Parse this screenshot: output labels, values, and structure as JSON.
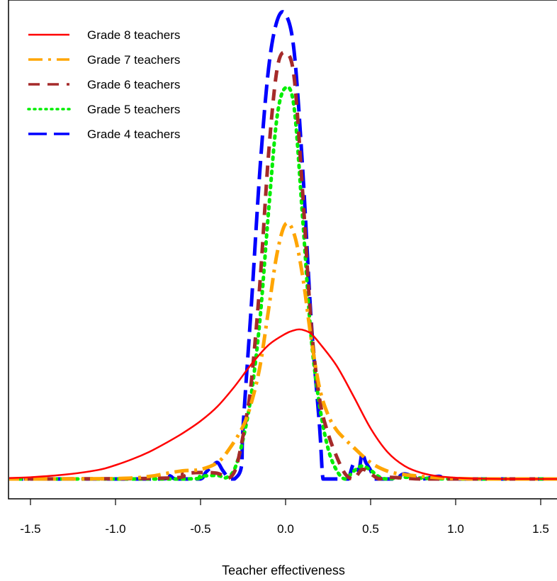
{
  "chart_data": {
    "type": "line",
    "title": "",
    "xlabel": "Teacher effectiveness",
    "ylabel": "",
    "xlim": [
      -1.65,
      1.6
    ],
    "ylim": [
      -0.06,
      1.0
    ],
    "x_ticks": [
      -1.5,
      -1.0,
      -0.5,
      0.0,
      0.5,
      1.0,
      1.5
    ],
    "x_tick_labels": [
      "-1.5",
      "-1.0",
      "-0.5",
      "0.0",
      "0.5",
      "1.0",
      "1.5"
    ],
    "y_axis_shown": false,
    "grid": false,
    "legend_position": "top-left",
    "series": [
      {
        "name": "Grade 8 teachers",
        "color": "#ff0000",
        "style": "solid",
        "x": [
          -1.65,
          -1.5,
          -1.3,
          -1.1,
          -1.0,
          -0.9,
          -0.8,
          -0.7,
          -0.6,
          -0.5,
          -0.4,
          -0.3,
          -0.2,
          -0.1,
          0.0,
          0.05,
          0.08,
          0.11,
          0.15,
          0.2,
          0.3,
          0.4,
          0.5,
          0.6,
          0.7,
          0.8,
          0.9,
          1.0,
          1.1,
          1.3,
          1.6
        ],
        "values": [
          0.002,
          0.004,
          0.01,
          0.021,
          0.032,
          0.046,
          0.063,
          0.084,
          0.107,
          0.134,
          0.168,
          0.214,
          0.266,
          0.31,
          0.336,
          0.344,
          0.346,
          0.344,
          0.336,
          0.314,
          0.262,
          0.191,
          0.117,
          0.062,
          0.03,
          0.014,
          0.006,
          0.003,
          0.001,
          0.0,
          0.0
        ]
      },
      {
        "name": "Grade 7 teachers",
        "color": "#ffa500",
        "style": "dotdash",
        "x": [
          -1.65,
          -1.0,
          -0.8,
          -0.7,
          -0.6,
          -0.5,
          -0.4,
          -0.33,
          -0.25,
          -0.2,
          -0.15,
          -0.1,
          -0.05,
          0.0,
          0.05,
          0.1,
          0.15,
          0.2,
          0.25,
          0.3,
          0.35,
          0.4,
          0.5,
          0.6,
          0.7,
          0.8,
          0.9,
          1.0,
          1.2,
          1.6
        ],
        "values": [
          0.0,
          0.001,
          0.006,
          0.013,
          0.019,
          0.022,
          0.038,
          0.07,
          0.122,
          0.178,
          0.262,
          0.392,
          0.522,
          0.59,
          0.567,
          0.47,
          0.326,
          0.21,
          0.148,
          0.113,
          0.092,
          0.073,
          0.038,
          0.018,
          0.01,
          0.006,
          0.003,
          0.001,
          0.0,
          0.0
        ]
      },
      {
        "name": "Grade 6 teachers",
        "color": "#a52a2a",
        "style": "dashed",
        "x": [
          -1.65,
          -0.7,
          -0.6,
          -0.5,
          -0.4,
          -0.34,
          -0.3,
          -0.27,
          -0.23,
          -0.2,
          -0.15,
          -0.1,
          -0.05,
          0.0,
          0.05,
          0.1,
          0.15,
          0.2,
          0.25,
          0.3,
          0.35,
          0.4,
          0.45,
          0.5,
          0.55,
          0.6,
          0.7,
          0.8,
          1.0,
          1.6
        ],
        "values": [
          0.0,
          0.002,
          0.012,
          0.015,
          0.013,
          0.002,
          0.017,
          0.06,
          0.145,
          0.23,
          0.458,
          0.752,
          0.948,
          0.986,
          0.93,
          0.665,
          0.36,
          0.185,
          0.105,
          0.052,
          0.012,
          0.0,
          0.022,
          0.012,
          0.0,
          0.004,
          0.002,
          0.0,
          0.0,
          0.0
        ]
      },
      {
        "name": "Grade 5 teachers",
        "color": "#00ee00",
        "style": "dotted",
        "x": [
          -1.65,
          -0.6,
          -0.5,
          -0.4,
          -0.35,
          -0.3,
          -0.25,
          -0.2,
          -0.15,
          -0.1,
          -0.05,
          0.0,
          0.05,
          0.1,
          0.15,
          0.2,
          0.25,
          0.3,
          0.35,
          0.4,
          0.45,
          0.5,
          0.55,
          0.6,
          0.7,
          0.8,
          1.0,
          1.6
        ],
        "values": [
          0.0,
          0.0,
          0.006,
          0.008,
          0.003,
          0.023,
          0.092,
          0.2,
          0.372,
          0.62,
          0.838,
          0.905,
          0.86,
          0.605,
          0.33,
          0.17,
          0.07,
          0.02,
          0.0,
          0.018,
          0.03,
          0.02,
          0.005,
          0.0,
          0.004,
          0.002,
          0.0,
          0.0
        ]
      },
      {
        "name": "Grade 4 teachers",
        "color": "#0000ff",
        "style": "longdash",
        "x": [
          -1.65,
          -0.75,
          -0.7,
          -0.65,
          -0.6,
          -0.5,
          -0.47,
          -0.43,
          -0.4,
          -0.37,
          -0.33,
          -0.3,
          -0.26,
          -0.25,
          -0.2,
          -0.15,
          -0.1,
          -0.05,
          0.0,
          0.05,
          0.1,
          0.15,
          0.2,
          0.22,
          0.25,
          0.3,
          0.35,
          0.37,
          0.4,
          0.43,
          0.45,
          0.47,
          0.5,
          0.52,
          0.55,
          0.6,
          0.65,
          0.7,
          0.8,
          0.9,
          1.0,
          1.6
        ],
        "values": [
          0.0,
          0.0,
          0.01,
          0.0,
          0.0,
          0.0,
          0.015,
          0.03,
          0.038,
          0.02,
          0.0,
          0.0,
          0.028,
          0.12,
          0.41,
          0.72,
          0.95,
          1.06,
          1.075,
          0.99,
          0.72,
          0.37,
          0.12,
          0.0,
          0.0,
          0.0,
          0.0,
          0.0,
          0.035,
          0.02,
          0.06,
          0.04,
          0.02,
          0.0,
          0.0,
          0.0,
          0.0,
          0.012,
          0.0,
          0.006,
          0.0,
          0.0
        ]
      }
    ]
  }
}
